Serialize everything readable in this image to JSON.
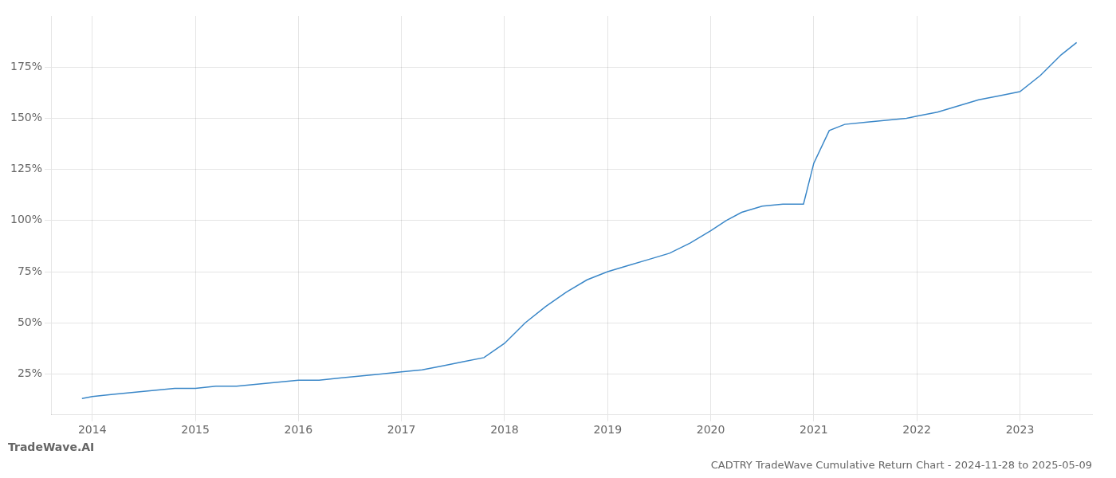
{
  "chart_data": {
    "type": "line",
    "title": "CADTRY TradeWave Cumulative Return Chart - 2024-11-28 to 2025-05-09",
    "annotations": [
      "TradeWave.AI"
    ],
    "color": "#3a87c8",
    "grid": true,
    "x": [
      2013.9,
      2014.0,
      2014.2,
      2014.4,
      2014.6,
      2014.8,
      2015.0,
      2015.2,
      2015.4,
      2015.6,
      2015.8,
      2016.0,
      2016.2,
      2016.4,
      2016.6,
      2016.8,
      2017.0,
      2017.2,
      2017.4,
      2017.6,
      2017.8,
      2018.0,
      2018.2,
      2018.4,
      2018.6,
      2018.8,
      2019.0,
      2019.2,
      2019.4,
      2019.6,
      2019.8,
      2020.0,
      2020.15,
      2020.3,
      2020.5,
      2020.7,
      2020.9,
      2021.0,
      2021.15,
      2021.3,
      2021.5,
      2021.7,
      2021.9,
      2022.0,
      2022.2,
      2022.4,
      2022.6,
      2022.8,
      2023.0,
      2023.2,
      2023.4,
      2023.55
    ],
    "values": [
      13,
      14,
      15,
      16,
      17,
      18,
      18,
      19,
      19,
      20,
      21,
      22,
      22,
      23,
      24,
      25,
      26,
      27,
      29,
      31,
      33,
      40,
      50,
      58,
      65,
      71,
      75,
      78,
      81,
      84,
      89,
      95,
      100,
      104,
      107,
      108,
      108,
      128,
      144,
      147,
      148,
      149,
      150,
      151,
      153,
      156,
      159,
      161,
      163,
      171,
      181,
      187
    ],
    "xlim": [
      2013.6,
      2023.7
    ],
    "xticks": [
      2014,
      2015,
      2016,
      2017,
      2018,
      2019,
      2020,
      2021,
      2022,
      2023
    ],
    "ylim": [
      5,
      200
    ],
    "yticks": [
      {
        "value": 25,
        "label": "25%"
      },
      {
        "value": 50,
        "label": "50%"
      },
      {
        "value": 75,
        "label": "75%"
      },
      {
        "value": 100,
        "label": "100%"
      },
      {
        "value": 125,
        "label": "125%"
      },
      {
        "value": 150,
        "label": "150%"
      },
      {
        "value": 175,
        "label": "175%"
      }
    ]
  }
}
